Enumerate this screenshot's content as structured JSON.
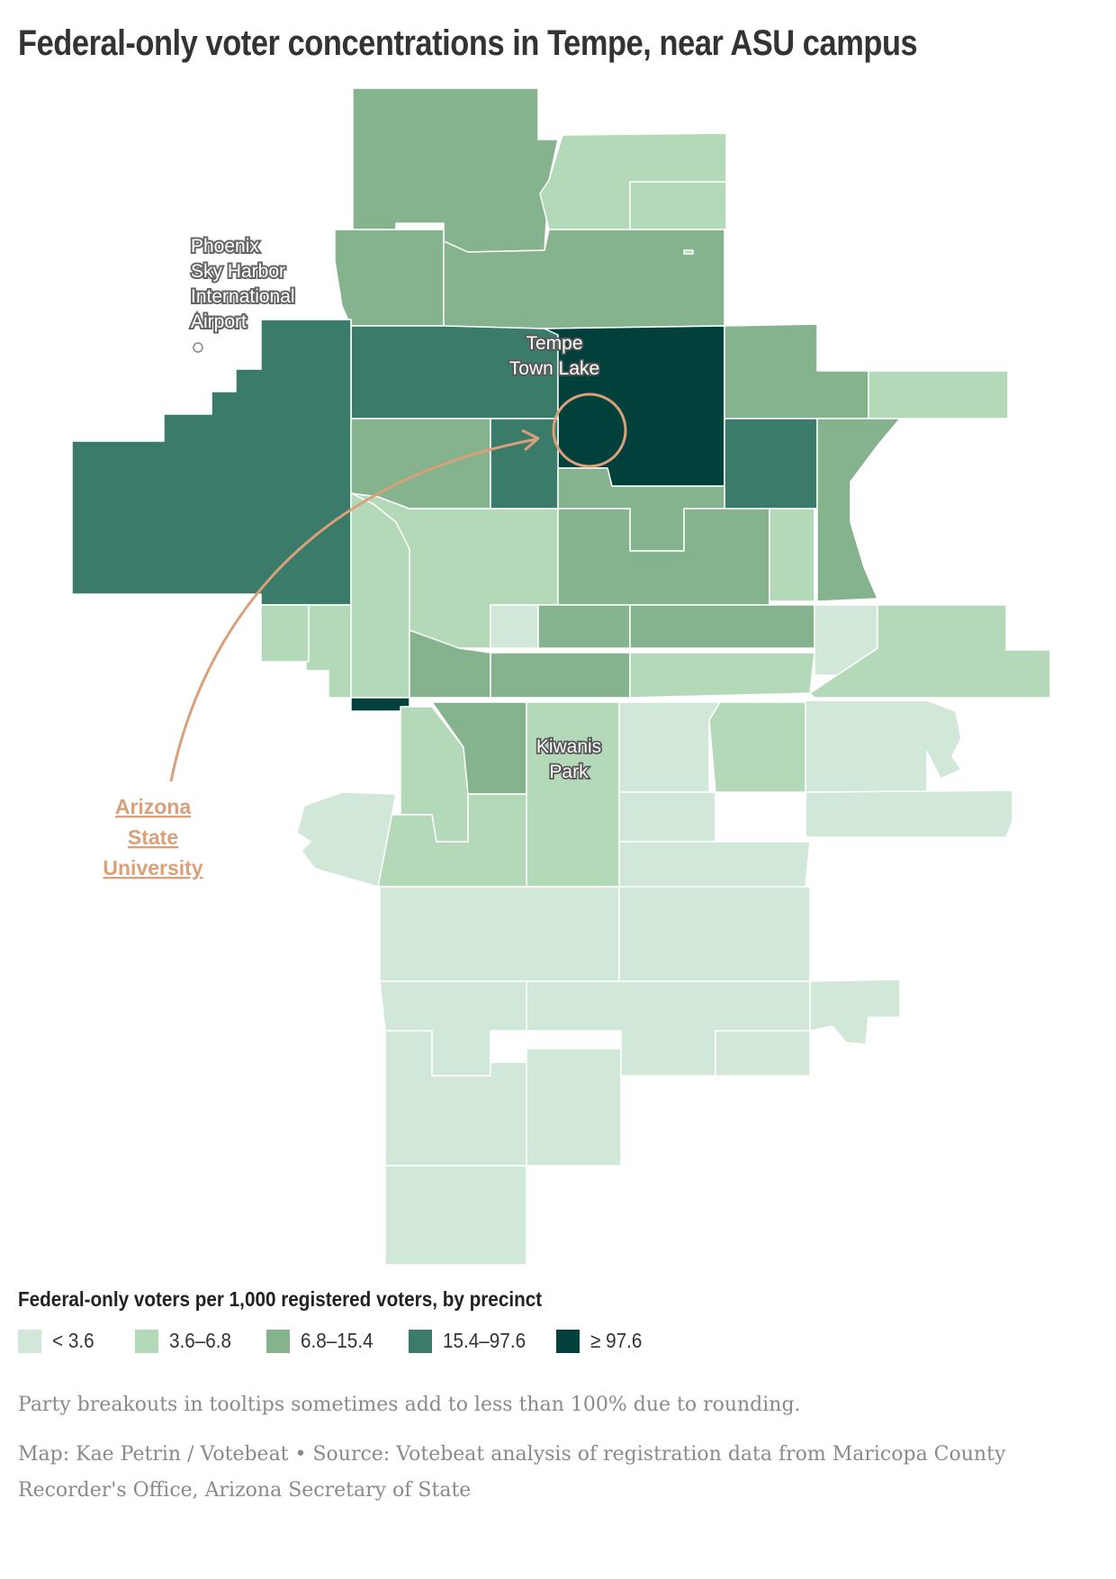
{
  "title": "Federal-only voter concentrations in Tempe, near ASU campus",
  "map": {
    "labels": {
      "airport": [
        "Phoenix",
        "Sky Harbor",
        "International",
        "Airport"
      ],
      "lake": [
        "Tempe",
        "Town Lake"
      ],
      "park": [
        "Kiwanis",
        "Park"
      ],
      "asu": [
        "Arizona",
        "State",
        "University"
      ]
    },
    "colors": {
      "c1": "#d1e7d8",
      "c2": "#b3d9b9",
      "c3": "#84b38d",
      "c4": "#3b7b6a",
      "c5": "#02413b",
      "annotation": "#d9a07a"
    }
  },
  "legend": {
    "title": "Federal-only voters per 1,000 registered voters, by precinct",
    "items": [
      {
        "label": "< 3.6",
        "color": "#d1e7d8"
      },
      {
        "label": "3.6–6.8",
        "color": "#b3d9b9"
      },
      {
        "label": "6.8–15.4",
        "color": "#84b38d"
      },
      {
        "label": "15.4–97.6",
        "color": "#3b7b6a"
      },
      {
        "label": "≥ 97.6",
        "color": "#02413b"
      }
    ]
  },
  "footer": {
    "note": "Party breakouts in tooltips sometimes add to less than 100% due to rounding.",
    "credit": "Map: Kae Petrin / Votebeat • Source: Votebeat analysis of registration data from Maricopa County Recorder's Office, Arizona Secretary of State"
  }
}
